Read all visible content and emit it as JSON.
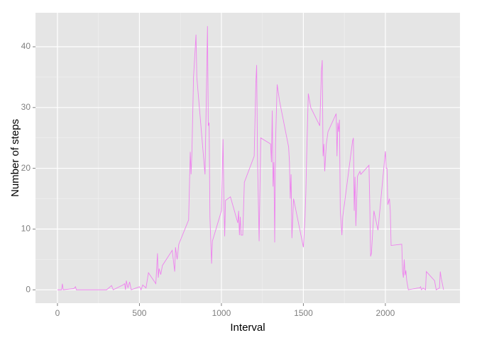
{
  "chart_data": {
    "type": "line",
    "x_label": "Interval",
    "y_label": "Number of steps",
    "x": [
      0,
      25,
      30,
      35,
      100,
      110,
      115,
      200,
      300,
      330,
      340,
      400,
      410,
      415,
      420,
      430,
      440,
      450,
      500,
      510,
      520,
      540,
      555,
      600,
      610,
      615,
      620,
      630,
      640,
      700,
      715,
      720,
      730,
      740,
      800,
      810,
      815,
      820,
      830,
      845,
      850,
      900,
      910,
      915,
      920,
      925,
      930,
      940,
      945,
      1000,
      1010,
      1015,
      1020,
      1025,
      1055,
      1100,
      1105,
      1110,
      1115,
      1120,
      1130,
      1140,
      1200,
      1210,
      1215,
      1220,
      1230,
      1240,
      1300,
      1305,
      1310,
      1315,
      1320,
      1325,
      1330,
      1340,
      1355,
      1410,
      1415,
      1420,
      1425,
      1430,
      1440,
      1500,
      1510,
      1515,
      1520,
      1530,
      1545,
      1600,
      1610,
      1615,
      1620,
      1625,
      1630,
      1640,
      1650,
      1700,
      1705,
      1710,
      1715,
      1720,
      1725,
      1735,
      1740,
      1800,
      1805,
      1810,
      1815,
      1820,
      1830,
      1845,
      1850,
      1900,
      1905,
      1910,
      1915,
      1930,
      1955,
      2000,
      2005,
      2010,
      2015,
      2025,
      2030,
      2035,
      2100,
      2105,
      2110,
      2115,
      2120,
      2125,
      2130,
      2140,
      2200,
      2210,
      2215,
      2220,
      2230,
      2245,
      2250,
      2300,
      2310,
      2330,
      2335,
      2340,
      2355
    ],
    "series": [
      {
        "color": "#ee82ee",
        "values": [
          0,
          0,
          1,
          0,
          0.2,
          0.5,
          0,
          0,
          0,
          0.7,
          0,
          0.8,
          1,
          0,
          1.5,
          0.3,
          1.3,
          0,
          0.5,
          0,
          0.8,
          0.3,
          2.8,
          1,
          6,
          2,
          3.5,
          2.5,
          4,
          6.5,
          3,
          7,
          5,
          7.5,
          11.5,
          22.7,
          19,
          22.5,
          35,
          42,
          35,
          19,
          35,
          43.4,
          27,
          27.5,
          12,
          4.3,
          8,
          13,
          24.8,
          15,
          8.8,
          14.7,
          15.3,
          11,
          13,
          9,
          12,
          9,
          9,
          17.7,
          22,
          34,
          37,
          22,
          8,
          25,
          24,
          21,
          29.5,
          17,
          21,
          7.8,
          24,
          33.8,
          31,
          23.5,
          21,
          15,
          19,
          8.5,
          15,
          7,
          12,
          16,
          22,
          32.3,
          30,
          27,
          36,
          37.8,
          22,
          24,
          19.5,
          24,
          26,
          29,
          22,
          27.5,
          26,
          28,
          13,
          9,
          12,
          24.5,
          25,
          13,
          18.6,
          10.5,
          18.7,
          19.5,
          19,
          20.5,
          14,
          5.5,
          6,
          13,
          9.8,
          22.8,
          20,
          20,
          14,
          15,
          13,
          7.3,
          7.5,
          3,
          2,
          5,
          2.4,
          3.2,
          1.6,
          0,
          0.3,
          0.3,
          0.5,
          0,
          0.3,
          0,
          3,
          1.5,
          0,
          0.3,
          3,
          2,
          0
        ]
      }
    ],
    "xlim": [
      -134,
      2455
    ],
    "ylim": [
      -2.2,
      45.6
    ],
    "xticks": [
      0,
      500,
      1000,
      1500,
      2000
    ],
    "yticks": [
      0,
      10,
      20,
      30,
      40
    ],
    "grid": true
  }
}
